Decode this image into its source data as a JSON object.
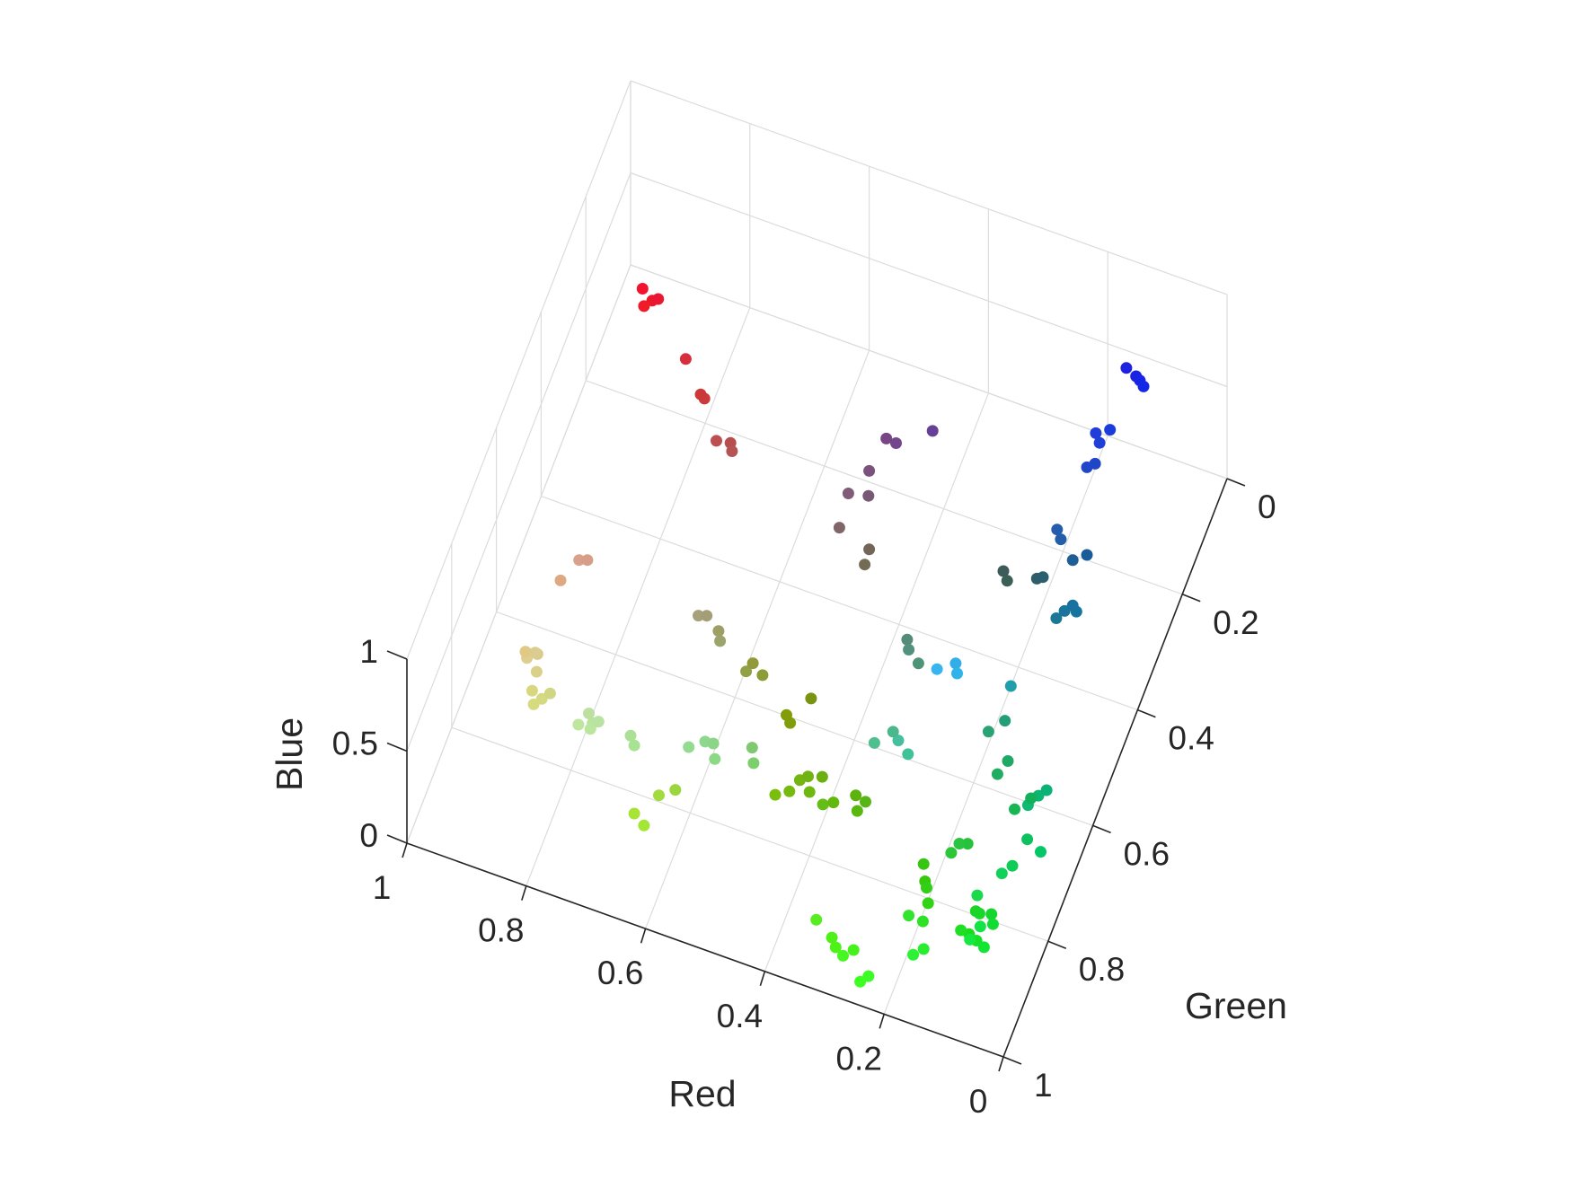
{
  "chart_data": {
    "type": "scatter",
    "title": "",
    "xlabel": "Red",
    "ylabel": "Green",
    "zlabel": "Blue",
    "xlim": [
      0,
      1
    ],
    "ylim": [
      0,
      1
    ],
    "zlim": [
      0,
      1
    ],
    "grid": true,
    "x_ticks": [
      "0",
      "0.2",
      "0.4",
      "0.6",
      "0.8",
      "1"
    ],
    "y_ticks": [
      "0",
      "0.2",
      "0.4",
      "0.6",
      "0.8",
      "1"
    ],
    "z_ticks": [
      "0",
      "0.5",
      "1"
    ],
    "marker_color": "rgb(r,g,b) of each point",
    "points": [
      [
        0.93,
        0.09,
        0.17
      ],
      [
        0.95,
        0.08,
        0.18
      ],
      [
        0.94,
        0.1,
        0.16
      ],
      [
        0.92,
        0.09,
        0.19
      ],
      [
        0.84,
        0.18,
        0.24
      ],
      [
        0.79,
        0.23,
        0.24
      ],
      [
        0.8,
        0.22,
        0.22
      ],
      [
        0.74,
        0.31,
        0.32
      ],
      [
        0.72,
        0.3,
        0.3
      ],
      [
        0.71,
        0.32,
        0.33
      ],
      [
        0.47,
        0.27,
        0.52
      ],
      [
        0.45,
        0.28,
        0.55
      ],
      [
        0.4,
        0.25,
        0.58
      ],
      [
        0.48,
        0.32,
        0.49
      ],
      [
        0.5,
        0.36,
        0.47
      ],
      [
        0.47,
        0.35,
        0.46
      ],
      [
        0.5,
        0.4,
        0.41
      ],
      [
        0.45,
        0.4,
        0.35
      ],
      [
        0.45,
        0.42,
        0.33
      ],
      [
        0.1,
        0.14,
        0.88
      ],
      [
        0.09,
        0.15,
        0.9
      ],
      [
        0.12,
        0.13,
        0.87
      ],
      [
        0.08,
        0.16,
        0.91
      ],
      [
        0.13,
        0.24,
        0.85
      ],
      [
        0.11,
        0.23,
        0.86
      ],
      [
        0.12,
        0.25,
        0.84
      ],
      [
        0.12,
        0.27,
        0.79
      ],
      [
        0.13,
        0.28,
        0.79
      ],
      [
        0.15,
        0.36,
        0.68
      ],
      [
        0.14,
        0.37,
        0.67
      ],
      [
        0.11,
        0.47,
        0.59
      ],
      [
        0.1,
        0.46,
        0.61
      ],
      [
        0.08,
        0.46,
        0.63
      ],
      [
        0.09,
        0.45,
        0.62
      ],
      [
        0.1,
        0.36,
        0.6
      ],
      [
        0.12,
        0.37,
        0.58
      ],
      [
        0.18,
        0.37,
        0.41
      ],
      [
        0.17,
        0.37,
        0.43
      ],
      [
        0.24,
        0.36,
        0.35
      ],
      [
        0.23,
        0.37,
        0.34
      ],
      [
        0.85,
        0.63,
        0.55
      ],
      [
        0.84,
        0.62,
        0.53
      ],
      [
        0.87,
        0.66,
        0.51
      ],
      [
        0.87,
        0.8,
        0.55
      ],
      [
        0.87,
        0.81,
        0.56
      ],
      [
        0.86,
        0.79,
        0.53
      ],
      [
        0.85,
        0.82,
        0.54
      ],
      [
        0.86,
        0.8,
        0.57
      ],
      [
        0.88,
        0.79,
        0.52
      ],
      [
        0.85,
        0.84,
        0.5
      ],
      [
        0.83,
        0.85,
        0.51
      ],
      [
        0.84,
        0.86,
        0.5
      ],
      [
        0.82,
        0.84,
        0.52
      ],
      [
        0.73,
        0.89,
        0.62
      ],
      [
        0.74,
        0.88,
        0.63
      ],
      [
        0.73,
        0.9,
        0.62
      ],
      [
        0.72,
        0.89,
        0.64
      ],
      [
        0.75,
        0.9,
        0.62
      ],
      [
        0.67,
        0.88,
        0.59
      ],
      [
        0.66,
        0.89,
        0.58
      ],
      [
        0.65,
        0.63,
        0.48
      ],
      [
        0.64,
        0.62,
        0.46
      ],
      [
        0.62,
        0.62,
        0.4
      ],
      [
        0.61,
        0.64,
        0.42
      ],
      [
        0.57,
        0.63,
        0.27
      ],
      [
        0.55,
        0.61,
        0.21
      ],
      [
        0.57,
        0.6,
        0.22
      ],
      [
        0.48,
        0.58,
        0.07
      ],
      [
        0.5,
        0.62,
        0.04
      ],
      [
        0.51,
        0.61,
        0.04
      ],
      [
        0.33,
        0.55,
        0.47
      ],
      [
        0.32,
        0.57,
        0.49
      ],
      [
        0.3,
        0.58,
        0.47
      ],
      [
        0.27,
        0.75,
        0.62
      ],
      [
        0.25,
        0.76,
        0.6
      ],
      [
        0.29,
        0.72,
        0.55
      ],
      [
        0.31,
        0.75,
        0.56
      ],
      [
        0.2,
        0.68,
        0.9
      ],
      [
        0.22,
        0.71,
        0.94
      ],
      [
        0.19,
        0.7,
        0.92
      ],
      [
        0.13,
        0.62,
        0.67
      ],
      [
        0.56,
        0.84,
        0.56
      ],
      [
        0.55,
        0.83,
        0.53
      ],
      [
        0.54,
        0.85,
        0.52
      ],
      [
        0.58,
        0.86,
        0.57
      ],
      [
        0.5,
        0.79,
        0.44
      ],
      [
        0.49,
        0.81,
        0.43
      ],
      [
        0.61,
        0.84,
        0.24
      ],
      [
        0.63,
        0.86,
        0.25
      ],
      [
        0.66,
        0.89,
        0.21
      ],
      [
        0.64,
        0.9,
        0.2
      ],
      [
        0.45,
        0.71,
        0.07
      ],
      [
        0.46,
        0.73,
        0.06
      ],
      [
        0.43,
        0.72,
        0.06
      ],
      [
        0.44,
        0.7,
        0.07
      ],
      [
        0.4,
        0.74,
        0.09
      ],
      [
        0.39,
        0.72,
        0.05
      ],
      [
        0.48,
        0.74,
        0.05
      ],
      [
        0.42,
        0.69,
        0.06
      ],
      [
        0.36,
        0.7,
        0.06
      ],
      [
        0.35,
        0.72,
        0.05
      ],
      [
        0.34,
        0.71,
        0.08
      ],
      [
        0.21,
        0.79,
        0.05
      ],
      [
        0.22,
        0.77,
        0.07
      ],
      [
        0.2,
        0.81,
        0.09
      ],
      [
        0.19,
        0.83,
        0.08
      ],
      [
        0.17,
        0.78,
        0.22
      ],
      [
        0.15,
        0.76,
        0.23
      ],
      [
        0.16,
        0.77,
        0.25
      ],
      [
        0.11,
        0.83,
        0.13
      ],
      [
        0.11,
        0.86,
        0.1
      ],
      [
        0.12,
        0.87,
        0.14
      ],
      [
        0.1,
        0.84,
        0.16
      ],
      [
        0.08,
        0.84,
        0.18
      ],
      [
        0.07,
        0.86,
        0.2
      ],
      [
        0.09,
        0.88,
        0.15
      ],
      [
        0.07,
        0.9,
        0.2
      ],
      [
        0.06,
        0.8,
        0.34
      ],
      [
        0.07,
        0.82,
        0.35
      ],
      [
        0.05,
        0.76,
        0.37
      ],
      [
        0.02,
        0.78,
        0.4
      ],
      [
        0.05,
        0.71,
        0.45
      ],
      [
        0.04,
        0.7,
        0.46
      ],
      [
        0.06,
        0.73,
        0.45
      ],
      [
        0.07,
        0.69,
        0.35
      ],
      [
        0.09,
        0.71,
        0.33
      ],
      [
        0.13,
        0.68,
        0.38
      ],
      [
        0.12,
        0.66,
        0.4
      ],
      [
        0.14,
        0.62,
        0.47
      ],
      [
        0.16,
        0.64,
        0.45
      ],
      [
        0.1,
        0.85,
        0.29
      ],
      [
        0.09,
        0.91,
        0.25
      ],
      [
        0.08,
        0.89,
        0.27
      ],
      [
        0.18,
        0.88,
        0.15
      ],
      [
        0.2,
        0.89,
        0.19
      ],
      [
        0.16,
        0.93,
        0.18
      ],
      [
        0.17,
        0.95,
        0.2
      ],
      [
        0.27,
        0.95,
        0.11
      ],
      [
        0.28,
        0.97,
        0.13
      ],
      [
        0.23,
        0.99,
        0.14
      ],
      [
        0.24,
        1.0,
        0.13
      ],
      [
        0.3,
        0.95,
        0.09
      ],
      [
        0.31,
        0.94,
        0.1
      ],
      [
        0.34,
        0.93,
        0.13
      ]
    ]
  }
}
